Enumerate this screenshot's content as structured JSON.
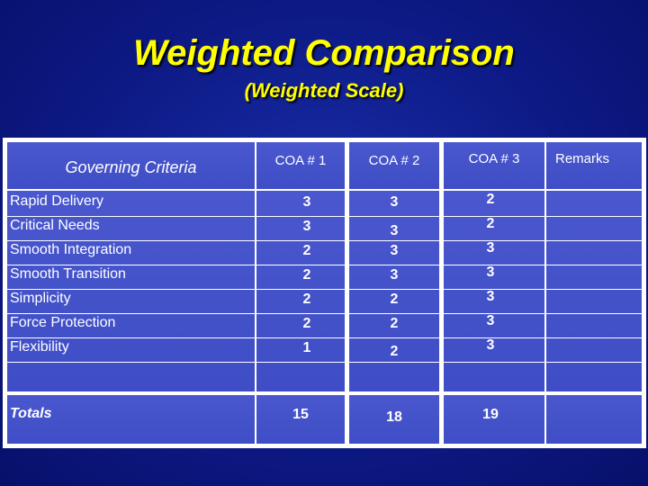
{
  "title": "Weighted Comparison",
  "subtitle": "(Weighted Scale)",
  "table": {
    "headers": {
      "criteria": "Governing Criteria",
      "coa1": "COA # 1",
      "coa2": "COA # 2",
      "coa3": "COA # 3",
      "remarks": "Remarks"
    },
    "rows": [
      {
        "criterion": "Rapid Delivery",
        "coa1": "3",
        "coa2": "3",
        "coa3": "2",
        "remarks": ""
      },
      {
        "criterion": "Critical Needs",
        "coa1": "3",
        "coa2": "3",
        "coa3": "2",
        "remarks": ""
      },
      {
        "criterion": "Smooth Integration",
        "coa1": "2",
        "coa2": "3",
        "coa3": "3",
        "remarks": ""
      },
      {
        "criterion": "Smooth Transition",
        "coa1": "2",
        "coa2": "3",
        "coa3": "3",
        "remarks": ""
      },
      {
        "criterion": "Simplicity",
        "coa1": "2",
        "coa2": "2",
        "coa3": "3",
        "remarks": ""
      },
      {
        "criterion": "Force Protection",
        "coa1": "2",
        "coa2": "2",
        "coa3": "3",
        "remarks": ""
      },
      {
        "criterion": "Flexibility",
        "coa1": "1",
        "coa2": "2",
        "coa3": "3",
        "remarks": ""
      },
      {
        "criterion": "",
        "coa1": "",
        "coa2": "",
        "coa3": "",
        "remarks": ""
      }
    ],
    "totals": {
      "label": "Totals",
      "coa1": "15",
      "coa2": "18",
      "coa3": "19",
      "remarks": ""
    }
  }
}
